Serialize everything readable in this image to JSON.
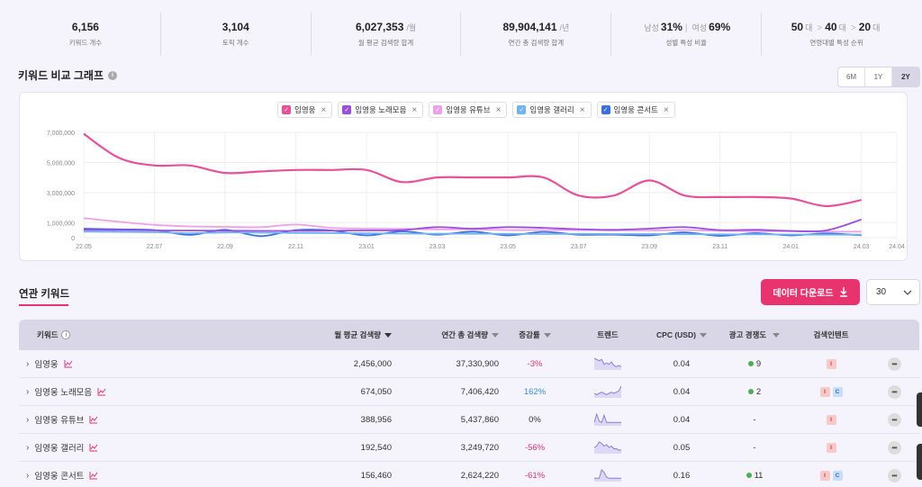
{
  "stats": [
    {
      "value": "6,156",
      "unit": "",
      "label": "키워드 개수"
    },
    {
      "value": "3,104",
      "unit": "",
      "label": "토픽 개수"
    },
    {
      "value": "6,027,353",
      "unit": "/월",
      "label": "월 평균 검색량 합계"
    },
    {
      "value": "89,904,141",
      "unit": "/년",
      "label": "연간 총 검색량 합계"
    },
    {
      "value": "",
      "unit": "",
      "label": "성별 특성 비율",
      "gender": {
        "m_label": "남성",
        "m_val": "31%",
        "f_label": "여성",
        "f_val": "69%"
      }
    },
    {
      "value": "",
      "unit": "",
      "label": "연령대별 특성 순위",
      "age": {
        "a": "50",
        "b": "40",
        "c": "20",
        "suffix": "대"
      }
    }
  ],
  "graph": {
    "title": "키워드 비교 그래프",
    "ranges": [
      "6M",
      "1Y",
      "2Y"
    ],
    "active_range": "2Y"
  },
  "chips": [
    {
      "label": "임영웅",
      "color": "#e8509a"
    },
    {
      "label": "임영웅 노래모음",
      "color": "#9b4de0"
    },
    {
      "label": "임영웅 유튜브",
      "color": "#f0a0e8"
    },
    {
      "label": "임영웅 갤러리",
      "color": "#6fb3f2"
    },
    {
      "label": "임영웅 콘서트",
      "color": "#3a6fe0"
    }
  ],
  "chart_data": {
    "type": "line",
    "x": [
      "22.05",
      "22.06",
      "22.07",
      "22.08",
      "22.09",
      "22.10",
      "22.11",
      "22.12",
      "23.01",
      "23.02",
      "23.03",
      "23.04",
      "23.05",
      "23.06",
      "23.07",
      "23.08",
      "23.09",
      "23.10",
      "23.11",
      "23.12",
      "24.01",
      "24.02",
      "24.03"
    ],
    "xticks": [
      "22.05",
      "22.07",
      "22.09",
      "22.11",
      "23.01",
      "23.03",
      "23.05",
      "23.07",
      "23.09",
      "23.11",
      "24.01",
      "24.03",
      "24.04"
    ],
    "yticks": [
      0,
      1000000,
      3000000,
      5000000,
      7000000
    ],
    "ytick_labels": [
      "0",
      "1,000,000",
      "3,000,000",
      "5,000,000",
      "7,000,000"
    ],
    "ylim": [
      0,
      7000000
    ],
    "series": [
      {
        "name": "임영웅",
        "color": "#e8509a",
        "values": [
          6900000,
          5300000,
          4800000,
          4800000,
          4300000,
          4400000,
          4500000,
          4500000,
          4500000,
          3700000,
          4000000,
          4000000,
          4000000,
          4000000,
          2800000,
          2800000,
          3800000,
          2800000,
          2700000,
          2700000,
          2600000,
          2100000,
          2500000
        ]
      },
      {
        "name": "임영웅 노래모음",
        "color": "#9b4de0",
        "values": [
          520000,
          500000,
          480000,
          470000,
          460000,
          450000,
          450000,
          460000,
          480000,
          500000,
          700000,
          600000,
          700000,
          650000,
          560000,
          520000,
          600000,
          700000,
          500000,
          520000,
          450000,
          480000,
          1200000
        ]
      },
      {
        "name": "임영웅 유튜브",
        "color": "#f0a0e8",
        "values": [
          1300000,
          1050000,
          850000,
          750000,
          720000,
          700000,
          870000,
          650000,
          600000,
          580000,
          550000,
          550000,
          500000,
          500000,
          500000,
          480000,
          480000,
          500000,
          450000,
          430000,
          420000,
          400000,
          400000
        ]
      },
      {
        "name": "임영웅 갤러리",
        "color": "#6fb3f2",
        "values": [
          400000,
          380000,
          360000,
          300000,
          340000,
          330000,
          310000,
          300000,
          290000,
          270000,
          260000,
          260000,
          250000,
          240000,
          250000,
          240000,
          240000,
          230000,
          220000,
          220000,
          210000,
          200000,
          200000
        ]
      },
      {
        "name": "임영웅 콘서트",
        "color": "#3a6fe0",
        "values": [
          600000,
          550000,
          500000,
          180000,
          520000,
          100000,
          500000,
          480000,
          150000,
          420000,
          200000,
          400000,
          150000,
          380000,
          200000,
          200000,
          150000,
          350000,
          120000,
          300000,
          150000,
          280000,
          150000
        ]
      }
    ]
  },
  "related": {
    "title": "연관 키워드",
    "download_label": "데이터 다운로드",
    "page_size": "30"
  },
  "table": {
    "headers": [
      "키워드",
      "월 평균 검색량",
      "연간 총 검색량",
      "증감률",
      "트렌드",
      "CPC (USD)",
      "광고 경쟁도",
      "검색인텐트"
    ],
    "rows": [
      {
        "keyword": "임영웅",
        "monthly": "2,456,000",
        "annual": "37,330,900",
        "change": "-3%",
        "change_type": "neg",
        "cpc": "0.04",
        "comp": "9",
        "comp_dot": true,
        "intents": [
          "I"
        ],
        "spark": [
          9,
          8,
          7,
          8,
          4,
          5,
          4,
          6,
          3,
          2,
          3,
          2
        ]
      },
      {
        "keyword": "임영웅 노래모음",
        "monthly": "674,050",
        "annual": "7,406,420",
        "change": "162%",
        "change_type": "pos",
        "cpc": "0.04",
        "comp": "2",
        "comp_dot": true,
        "intents": [
          "I",
          "C"
        ],
        "spark": [
          3,
          2,
          3,
          4,
          3,
          2,
          3,
          4,
          3,
          4,
          5,
          9
        ]
      },
      {
        "keyword": "임영웅 유튜브",
        "monthly": "388,956",
        "annual": "5,437,860",
        "change": "0%",
        "change_type": "zero",
        "cpc": "0.04",
        "comp": "-",
        "comp_dot": false,
        "intents": [
          "I"
        ],
        "spark": [
          2,
          9,
          3,
          2,
          8,
          2,
          2,
          2,
          2,
          2,
          2,
          2
        ]
      },
      {
        "keyword": "임영웅 갤러리",
        "monthly": "192,540",
        "annual": "3,249,720",
        "change": "-56%",
        "change_type": "neg",
        "cpc": "0.05",
        "comp": "-",
        "comp_dot": false,
        "intents": [
          "I"
        ],
        "spark": [
          4,
          5,
          8,
          7,
          5,
          6,
          4,
          5,
          3,
          3,
          2,
          2
        ]
      },
      {
        "keyword": "임영웅 콘서트",
        "monthly": "156,460",
        "annual": "2,624,220",
        "change": "-61%",
        "change_type": "neg",
        "cpc": "0.16",
        "comp": "11",
        "comp_dot": true,
        "intents": [
          "I",
          "C"
        ],
        "spark": [
          2,
          2,
          2,
          9,
          7,
          3,
          2,
          2,
          2,
          2,
          2,
          2
        ]
      }
    ]
  }
}
